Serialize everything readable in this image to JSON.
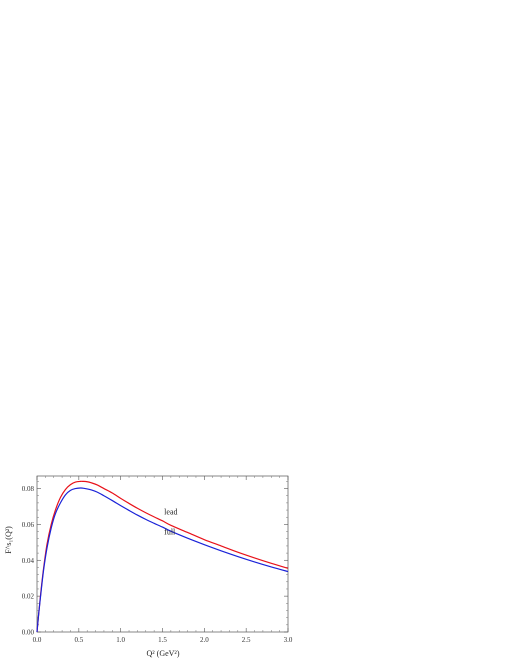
{
  "chart_data": {
    "type": "line",
    "title": "",
    "xlabel": "Q² (GeV²)",
    "ylabel": "F^s₁(Q²)",
    "xlim": [
      0,
      3.0
    ],
    "ylim": [
      0,
      0.087
    ],
    "xticks": [
      {
        "value": 0.0,
        "label": "0.0"
      },
      {
        "value": 0.5,
        "label": "0.5"
      },
      {
        "value": 1.0,
        "label": "1.0"
      },
      {
        "value": 1.5,
        "label": "1.5"
      },
      {
        "value": 2.0,
        "label": "2.0"
      },
      {
        "value": 2.5,
        "label": "2.5"
      },
      {
        "value": 3.0,
        "label": "3.0"
      }
    ],
    "yticks": [
      {
        "value": 0.0,
        "label": "0.00"
      },
      {
        "value": 0.02,
        "label": "0.02"
      },
      {
        "value": 0.04,
        "label": "0.04"
      },
      {
        "value": 0.06,
        "label": "0.06"
      },
      {
        "value": 0.08,
        "label": "0.08"
      }
    ],
    "grid": false,
    "series": [
      {
        "name": "lead",
        "color": "#e8121a",
        "x": [
          0,
          0.02,
          0.05,
          0.08,
          0.12,
          0.17,
          0.22,
          0.28,
          0.34,
          0.4,
          0.46,
          0.52,
          0.55,
          0.6,
          0.65,
          0.72,
          0.8,
          0.9,
          1.0,
          1.1,
          1.2,
          1.3,
          1.4,
          1.5,
          1.6,
          1.8,
          2.0,
          2.2,
          2.4,
          2.6,
          2.8,
          3.0
        ],
        "y": [
          0.0,
          0.01,
          0.024,
          0.036,
          0.049,
          0.06,
          0.068,
          0.075,
          0.0795,
          0.0822,
          0.0836,
          0.084,
          0.084,
          0.0838,
          0.0832,
          0.082,
          0.08,
          0.0775,
          0.0745,
          0.0717,
          0.069,
          0.0665,
          0.0642,
          0.062,
          0.0595,
          0.0555,
          0.0515,
          0.048,
          0.0445,
          0.0413,
          0.0383,
          0.0355
        ]
      },
      {
        "name": "full",
        "color": "#1a22d8",
        "x": [
          0,
          0.02,
          0.05,
          0.08,
          0.12,
          0.17,
          0.22,
          0.28,
          0.34,
          0.4,
          0.46,
          0.52,
          0.55,
          0.6,
          0.65,
          0.72,
          0.8,
          0.9,
          1.0,
          1.1,
          1.2,
          1.3,
          1.4,
          1.5,
          1.6,
          1.8,
          2.0,
          2.2,
          2.4,
          2.6,
          2.8,
          3.0
        ],
        "y": [
          0.0,
          0.01,
          0.023,
          0.035,
          0.047,
          0.058,
          0.066,
          0.072,
          0.0765,
          0.079,
          0.08,
          0.0803,
          0.0802,
          0.0798,
          0.0792,
          0.078,
          0.076,
          0.0733,
          0.0705,
          0.0678,
          0.0652,
          0.0628,
          0.0606,
          0.0585,
          0.0562,
          0.0523,
          0.0487,
          0.0453,
          0.0421,
          0.0391,
          0.0363,
          0.0337
        ]
      }
    ],
    "annotations": [
      {
        "text": "lead",
        "x": 1.52,
        "y": 0.0655
      },
      {
        "text": "full",
        "x": 1.52,
        "y": 0.0545
      }
    ]
  }
}
